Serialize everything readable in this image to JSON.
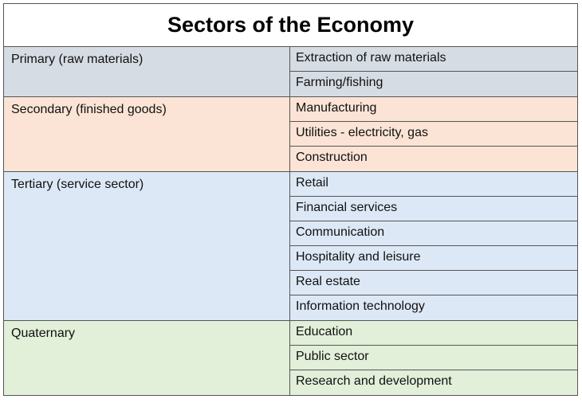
{
  "title": "Sectors of the Economy",
  "colors": {
    "primary": "#d6dce4",
    "secondary": "#fbe4d5",
    "tertiary": "#dde8f6",
    "quaternary": "#e2efd9",
    "border": "#555555"
  },
  "groups": [
    {
      "sector": "Primary (raw materials)",
      "items": [
        "Extraction of raw materials",
        "Farming/fishing"
      ]
    },
    {
      "sector": "Secondary (finished goods)",
      "items": [
        "Manufacturing",
        "Utilities - electricity, gas",
        "Construction"
      ]
    },
    {
      "sector": "Tertiary (service sector)",
      "items": [
        "Retail",
        "Financial services",
        "Communication",
        "Hospitality and leisure",
        "Real estate",
        "Information technology"
      ]
    },
    {
      "sector": "Quaternary",
      "items": [
        "Education",
        "Public sector",
        "Research and development"
      ]
    }
  ]
}
